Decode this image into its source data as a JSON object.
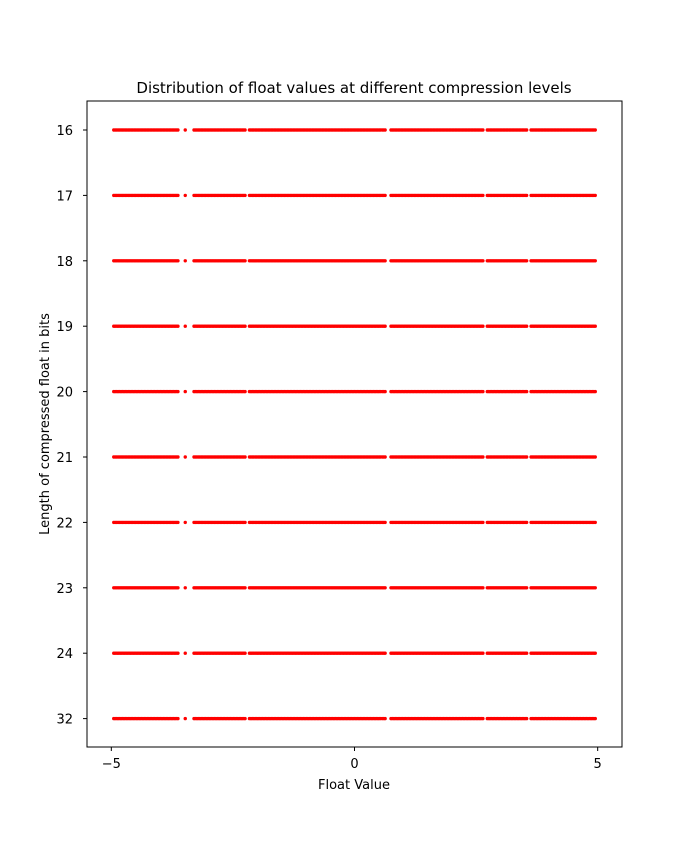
{
  "chart_data": {
    "type": "scatter",
    "title": "Distribution of float values at different compression levels",
    "xlabel": "Float Value",
    "ylabel": "Length of compressed float in bits",
    "xlim": [
      -5.5,
      5.5
    ],
    "x_ticks": [
      -5,
      0,
      5
    ],
    "x_tick_labels": [
      "−5",
      "0",
      "5"
    ],
    "categories": [
      "16",
      "17",
      "18",
      "19",
      "20",
      "21",
      "22",
      "23",
      "24",
      "32"
    ],
    "x_range": [
      -4.95,
      4.95
    ],
    "gaps": [
      [
        -3.6,
        -3.5
      ],
      [
        -3.45,
        -3.3
      ],
      [
        -2.25,
        -2.17
      ],
      [
        0.65,
        0.72
      ],
      [
        2.65,
        2.72
      ],
      [
        3.55,
        3.62
      ]
    ],
    "marker_color": "#ff0000",
    "grid": false,
    "legend": "none",
    "series": [
      {
        "values": [
          16
        ]
      },
      {
        "values": [
          17
        ]
      },
      {
        "values": [
          18
        ]
      },
      {
        "values": [
          19
        ]
      },
      {
        "values": [
          20
        ]
      },
      {
        "values": [
          21
        ]
      },
      {
        "values": [
          22
        ]
      },
      {
        "values": [
          23
        ]
      },
      {
        "values": [
          24
        ]
      },
      {
        "values": [
          32
        ]
      }
    ]
  }
}
